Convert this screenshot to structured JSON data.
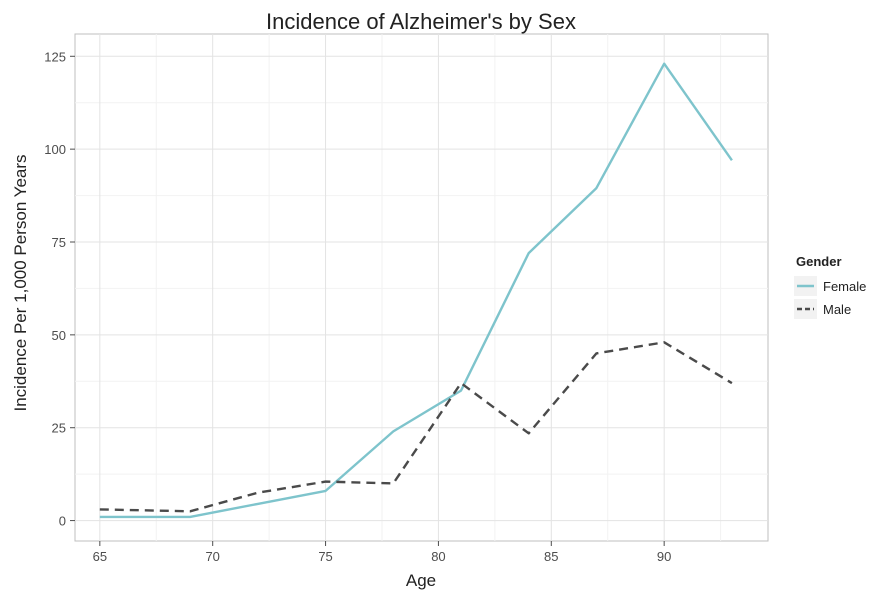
{
  "chart_data": {
    "type": "line",
    "title": "Incidence of Alzheimer's by Sex",
    "xlabel": "Age",
    "ylabel": "Incidence Per 1,000 Person Years",
    "xlim": [
      63.9,
      94.6
    ],
    "ylim": [
      -5.5,
      131
    ],
    "x_ticks": [
      65,
      70,
      75,
      80,
      85,
      90
    ],
    "y_ticks": [
      0,
      25,
      50,
      75,
      100,
      125
    ],
    "grid": true,
    "legend": {
      "title": "Gender",
      "position": "right"
    },
    "series": [
      {
        "name": "Female",
        "color": "#7ec4cc",
        "dash": "solid",
        "points": [
          [
            65,
            1
          ],
          [
            69,
            1
          ],
          [
            72,
            4.5
          ],
          [
            75,
            8
          ],
          [
            78,
            24
          ],
          [
            81,
            35
          ],
          [
            84,
            72
          ],
          [
            87,
            89.5
          ],
          [
            90,
            123
          ],
          [
            93,
            97
          ]
        ]
      },
      {
        "name": "Male",
        "color": "#4a4a4a",
        "dash": "dashed",
        "points": [
          [
            65,
            3
          ],
          [
            69,
            2.5
          ],
          [
            72,
            7.5
          ],
          [
            75,
            10.5
          ],
          [
            78,
            10
          ],
          [
            81,
            37
          ],
          [
            84,
            23.5
          ],
          [
            87,
            45
          ],
          [
            90,
            48
          ],
          [
            93,
            37
          ]
        ]
      }
    ]
  }
}
